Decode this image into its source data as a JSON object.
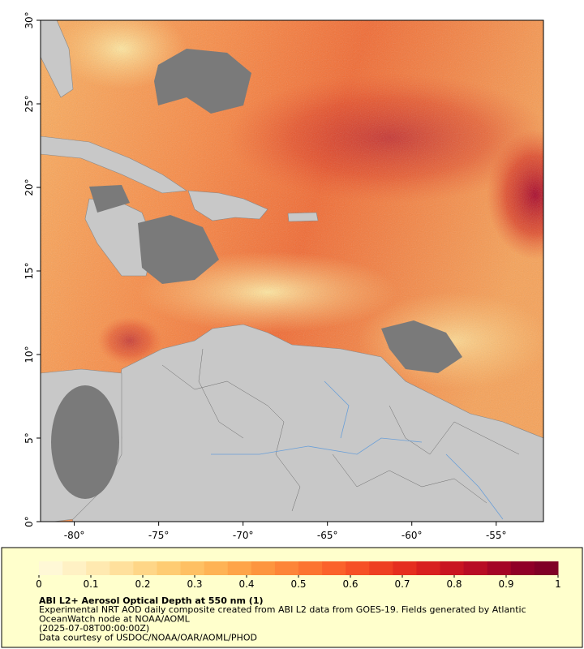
{
  "map": {
    "xlim": [
      -82,
      -52.2
    ],
    "ylim": [
      0,
      30
    ],
    "xticks": [
      {
        "value": -80,
        "label": "-80°"
      },
      {
        "value": -75,
        "label": "-75°"
      },
      {
        "value": -70,
        "label": "-70°"
      },
      {
        "value": -65,
        "label": "-65°"
      },
      {
        "value": -60,
        "label": "-60°"
      },
      {
        "value": -55,
        "label": "-55°"
      }
    ],
    "yticks": [
      {
        "value": 0,
        "label": "0°"
      },
      {
        "value": 5,
        "label": "5°"
      },
      {
        "value": 10,
        "label": "10°"
      },
      {
        "value": 15,
        "label": "15°"
      },
      {
        "value": 20,
        "label": "20°"
      },
      {
        "value": 25,
        "label": "25°"
      },
      {
        "value": 30,
        "label": "30°"
      }
    ]
  },
  "colorbar": {
    "lim": [
      0,
      1
    ],
    "ticks": [
      0,
      0.1,
      0.2,
      0.3,
      0.4,
      0.5,
      0.6,
      0.7,
      0.8,
      0.9,
      1
    ],
    "colors": [
      "#fff8d6",
      "#fff1c4",
      "#ffe9b0",
      "#ffe09c",
      "#fed687",
      "#fecc73",
      "#fec063",
      "#feb355",
      "#fea449",
      "#fd953f",
      "#fd8538",
      "#fc7431",
      "#fb622b",
      "#f65026",
      "#ee3f22",
      "#e52e1f",
      "#d8201f",
      "#c91521",
      "#b80c24",
      "#a40526",
      "#900027",
      "#800026"
    ]
  },
  "caption": {
    "title": "ABI L2+ Aerosol Optical Depth at 550 nm (1)",
    "lines": [
      "Experimental NRT AOD daily composite created from ABI L2 data from GOES-19. Fields generated by Atlantic",
      "OceanWatch node at NOAA/AOML",
      "(2025-07-08T00:00:00Z)",
      "Data courtesy of USDOC/NOAA/OAR/AOML/PHOD"
    ]
  }
}
